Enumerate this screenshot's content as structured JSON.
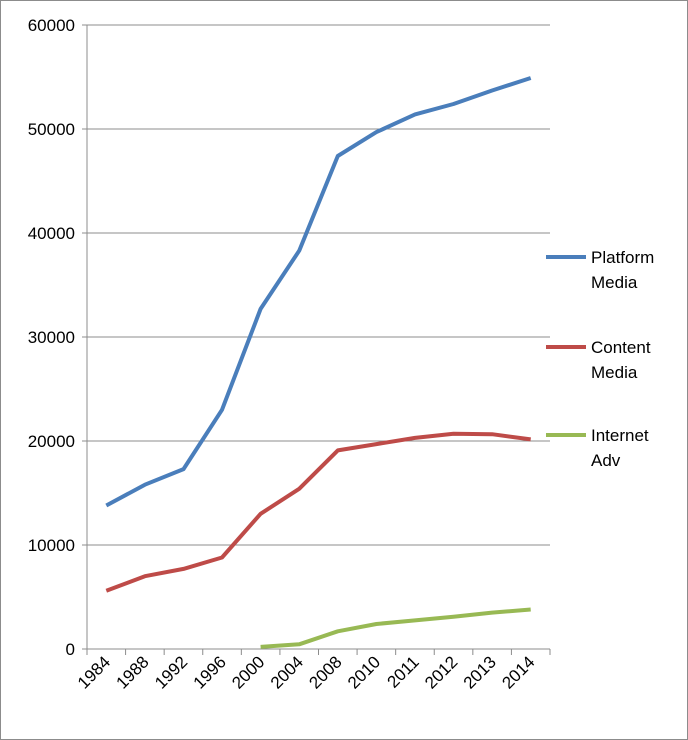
{
  "chart_data": {
    "type": "line",
    "title": "",
    "xlabel": "",
    "ylabel": "",
    "categories": [
      "1984",
      "1988",
      "1992",
      "1996",
      "2000",
      "2004",
      "2008",
      "2010",
      "2011",
      "2012",
      "2013",
      "2014"
    ],
    "ylim": [
      0,
      60000
    ],
    "yticks": [
      "0",
      "10000",
      "20000",
      "30000",
      "40000",
      "50000",
      "60000"
    ],
    "grid": true,
    "legend_position": "right",
    "series": [
      {
        "name_lines": [
          "Platform",
          "Media"
        ],
        "color": "#4a7ebb",
        "values": [
          13800,
          15800,
          17300,
          23000,
          32700,
          38300,
          47400,
          49700,
          51400,
          52400,
          53700,
          54900
        ]
      },
      {
        "name_lines": [
          "Content",
          "Media"
        ],
        "color": "#be4b48",
        "values": [
          5600,
          7000,
          7700,
          8800,
          13000,
          15400,
          19100,
          19700,
          20300,
          20700,
          20650,
          20150
        ]
      },
      {
        "name_lines": [
          "Internet",
          "Adv"
        ],
        "color": "#98b954",
        "values": [
          null,
          null,
          null,
          null,
          200,
          450,
          1700,
          2400,
          2750,
          3100,
          3500,
          3800
        ]
      }
    ]
  }
}
